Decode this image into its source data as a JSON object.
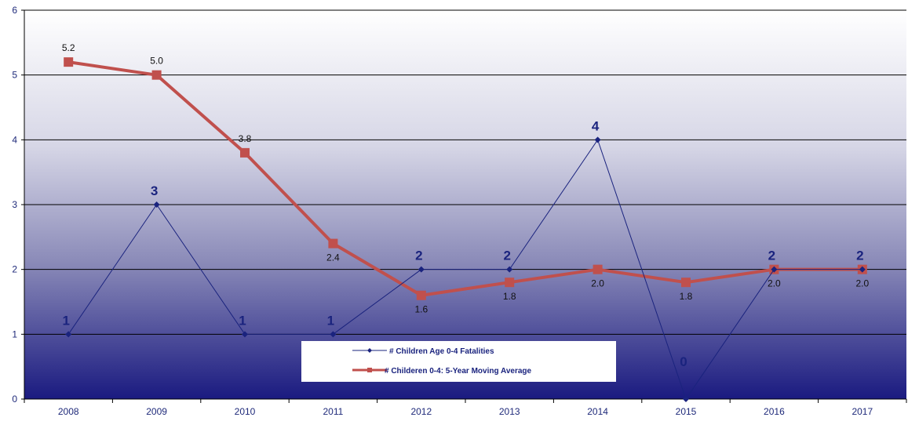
{
  "chart_data": {
    "type": "line",
    "categories": [
      "2008",
      "2009",
      "2010",
      "2011",
      "2012",
      "2013",
      "2014",
      "2015",
      "2016",
      "2017"
    ],
    "ylim": [
      0,
      6
    ],
    "yticks": [
      "0",
      "1",
      "2",
      "3",
      "4",
      "5",
      "6"
    ],
    "grid": true,
    "legend_position": "bottom-center",
    "series": [
      {
        "name": "# Children Age 0-4 Fatalities",
        "values": [
          1,
          3,
          1,
          1,
          2,
          2,
          4,
          0,
          2,
          2
        ],
        "labels": [
          "1",
          "3",
          "1",
          "1",
          "2",
          "2",
          "4",
          "0",
          "2",
          "2"
        ],
        "color": "#1a237e",
        "marker": "diamond"
      },
      {
        "name": "# Childeren 0-4: 5-Year Moving Average",
        "values": [
          5.2,
          5.0,
          3.8,
          2.4,
          1.6,
          1.8,
          2.0,
          1.8,
          2.0,
          2.0
        ],
        "labels": [
          "5.2",
          "5.0",
          "3.8",
          "2.4",
          "1.6",
          "1.8",
          "2.0",
          "1.8",
          "2.0",
          "2.0"
        ],
        "color": "#c0504d",
        "marker": "square"
      }
    ],
    "background_gradient": [
      "#ffffff",
      "#1a1a80"
    ]
  }
}
